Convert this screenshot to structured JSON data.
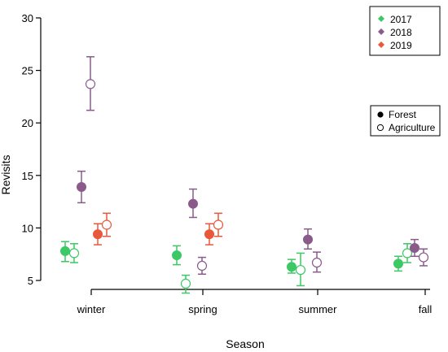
{
  "chart_data": {
    "type": "scatter",
    "xlabel": "Season",
    "ylabel": "Revisits",
    "ylim": [
      5,
      30
    ],
    "yticks": [
      5,
      10,
      15,
      20,
      25,
      30
    ],
    "categories": [
      "winter",
      "spring",
      "summer",
      "fall"
    ],
    "grid": false,
    "legend_year": {
      "position": "top-right",
      "entries": [
        {
          "label": "2017",
          "color": "#3cc864"
        },
        {
          "label": "2018",
          "color": "#8a5a8a"
        },
        {
          "label": "2019",
          "color": "#e8583a"
        }
      ]
    },
    "legend_type": {
      "position": "right",
      "entries": [
        {
          "label": "Forest",
          "marker": "filled"
        },
        {
          "label": "Agriculture",
          "marker": "open"
        }
      ]
    },
    "series": [
      {
        "year": "2017",
        "type": "Forest",
        "color": "#3cc864",
        "values": [
          7.8,
          7.4,
          6.3,
          6.6
        ],
        "lower": [
          6.8,
          6.5,
          5.7,
          5.9
        ],
        "upper": [
          8.7,
          8.3,
          7.0,
          7.3
        ]
      },
      {
        "year": "2017",
        "type": "Agriculture",
        "color": "#3cc864",
        "values": [
          7.6,
          4.7,
          6.0,
          7.6
        ],
        "lower": [
          6.7,
          3.8,
          4.5,
          6.7
        ],
        "upper": [
          8.5,
          5.5,
          7.6,
          8.5
        ]
      },
      {
        "year": "2018",
        "type": "Forest",
        "color": "#8a5a8a",
        "values": [
          13.9,
          12.3,
          8.9,
          8.1
        ],
        "lower": [
          12.4,
          11.0,
          8.0,
          7.3
        ],
        "upper": [
          15.4,
          13.7,
          9.9,
          8.9
        ]
      },
      {
        "year": "2018",
        "type": "Agriculture",
        "color": "#8a5a8a",
        "values": [
          23.7,
          6.4,
          6.7,
          7.2
        ],
        "lower": [
          21.2,
          5.6,
          5.8,
          6.4
        ],
        "upper": [
          26.3,
          7.2,
          7.7,
          8.0
        ]
      },
      {
        "year": "2019",
        "type": "Forest",
        "color": "#e8583a",
        "values": [
          9.4,
          9.4,
          null,
          null
        ],
        "lower": [
          8.4,
          8.4,
          null,
          null
        ],
        "upper": [
          10.4,
          10.4,
          null,
          null
        ]
      },
      {
        "year": "2019",
        "type": "Agriculture",
        "color": "#e8583a",
        "values": [
          10.3,
          10.3,
          null,
          null
        ],
        "lower": [
          9.2,
          9.2,
          null,
          null
        ],
        "upper": [
          11.4,
          11.4,
          null,
          null
        ]
      }
    ]
  }
}
